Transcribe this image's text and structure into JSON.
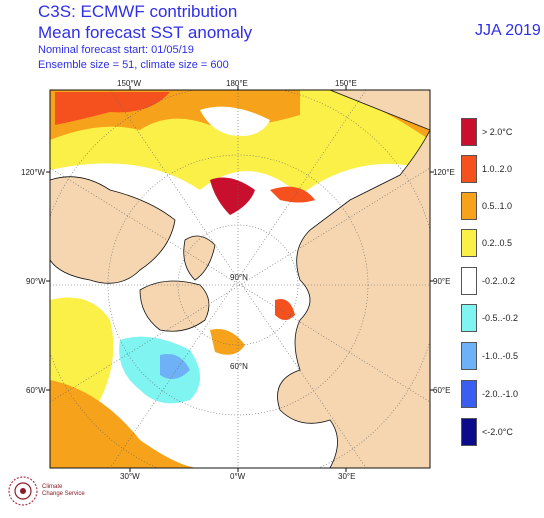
{
  "header": {
    "line1": "C3S: ECMWF contribution",
    "line2": "Mean forecast SST anomaly",
    "line3": "Nominal forecast start: 01/05/19",
    "line4": "Ensemble size = 51, climate size = 600",
    "season": "JJA 2019"
  },
  "map": {
    "projection": "north-polar stereographic",
    "top_labels": [
      "150°W",
      "180°E",
      "150°E"
    ],
    "bottom_labels": [
      "30°W",
      "0°W",
      "30°E"
    ],
    "left_labels": [
      "120°W",
      "90°W",
      "60°W"
    ],
    "right_labels": [
      "120°E",
      "90°E",
      "60°E"
    ],
    "inner_labels": [
      "90°N",
      "60°N"
    ],
    "colors": {
      "land": "#f5d6b0",
      "coast": "#111111"
    }
  },
  "legend": [
    {
      "label": "> 2.0°C",
      "color": "#c8102e"
    },
    {
      "label": "1.0..2.0",
      "color": "#f4511e"
    },
    {
      "label": "0.5..1.0",
      "color": "#f7a21b"
    },
    {
      "label": "0.2..0.5",
      "color": "#fbf048"
    },
    {
      "label": "-0.2..0.2",
      "color": "#ffffff"
    },
    {
      "label": "-0.5..-0.2",
      "color": "#7ff4f0"
    },
    {
      "label": "-1.0..-0.5",
      "color": "#6fb1f7"
    },
    {
      "label": "-2.0..-1.0",
      "color": "#3a5ff0"
    },
    {
      "label": "<-2.0°C",
      "color": "#0a0a8a"
    }
  ],
  "logo": {
    "line1": "Climate",
    "line2": "Change Service"
  }
}
